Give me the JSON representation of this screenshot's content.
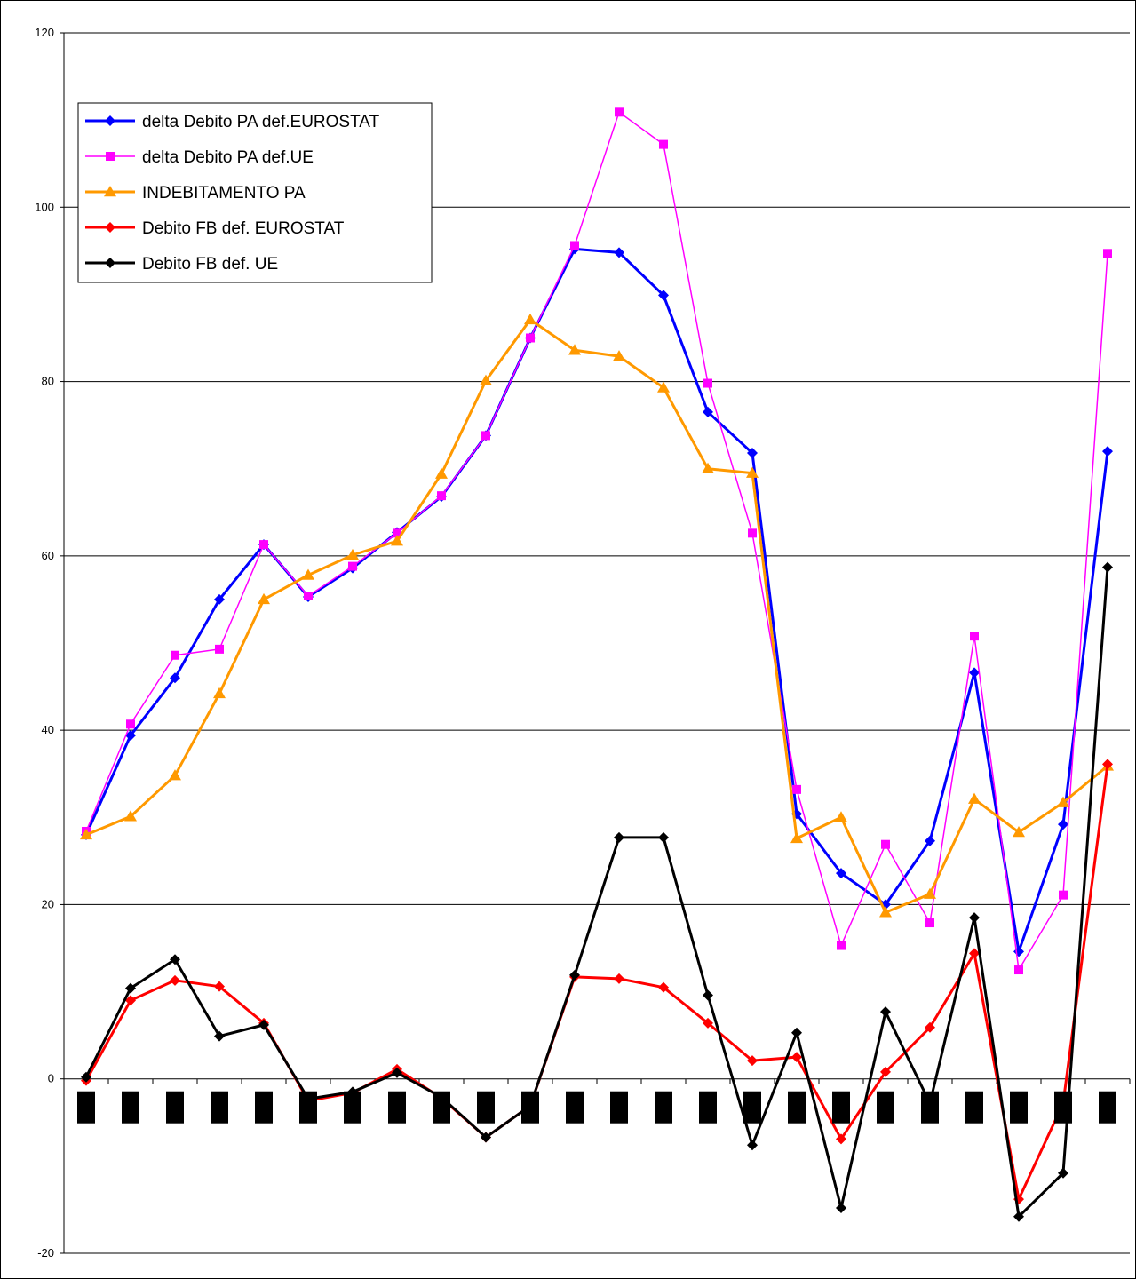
{
  "chart_data": {
    "type": "line",
    "ylim": [
      -20,
      120
    ],
    "yticks": [
      -20,
      0,
      20,
      40,
      60,
      80,
      100,
      120
    ],
    "grid": "horizontal",
    "legend_position": "top-left",
    "x_count": 24,
    "category_labels_obscured": true,
    "series": [
      {
        "name": "delta Debito PA def.EUROSTAT",
        "color": "#0000ff",
        "marker": "diamond",
        "values": [
          28.0,
          39.4,
          46.0,
          55.0,
          61.3,
          55.3,
          58.6,
          62.7,
          66.8,
          73.8,
          85.0,
          95.2,
          94.8,
          89.9,
          76.5,
          71.8,
          30.4,
          23.6,
          20.0,
          27.3,
          46.6,
          14.6,
          29.2,
          72.0
        ]
      },
      {
        "name": "delta Debito PA def.UE",
        "color": "#ff00ff",
        "marker": "square",
        "values": [
          28.4,
          40.7,
          48.6,
          49.3,
          61.3,
          55.4,
          58.8,
          62.6,
          66.9,
          73.8,
          85.0,
          95.6,
          110.9,
          107.2,
          79.8,
          62.6,
          33.2,
          15.3,
          26.9,
          17.9,
          50.8,
          12.5,
          21.1,
          94.7
        ]
      },
      {
        "name": "INDEBITAMENTO PA",
        "color": "#ff9900",
        "marker": "triangle",
        "values": [
          28.0,
          30.1,
          34.8,
          44.2,
          55.0,
          57.8,
          60.1,
          61.7,
          69.4,
          80.1,
          87.1,
          83.6,
          82.9,
          79.3,
          70.0,
          69.5,
          27.6,
          30.0,
          19.1,
          21.2,
          32.1,
          28.3,
          31.7,
          35.9
        ]
      },
      {
        "name": "Debito FB def. EUROSTAT",
        "color": "#ff0000",
        "marker": "diamond",
        "values": [
          -0.2,
          9.0,
          11.3,
          10.6,
          6.4,
          -2.5,
          -1.6,
          1.1,
          -2.2,
          -6.7,
          -3.1,
          11.7,
          11.5,
          10.5,
          6.4,
          2.1,
          2.5,
          -6.9,
          0.8,
          5.9,
          14.4,
          -13.8,
          -2.8,
          36.1
        ]
      },
      {
        "name": "Debito FB def. UE",
        "color": "#000000",
        "marker": "diamond",
        "values": [
          0.2,
          10.4,
          13.7,
          4.9,
          6.2,
          -2.3,
          -1.5,
          0.7,
          -2.1,
          -6.7,
          -3.1,
          11.9,
          27.7,
          27.7,
          9.6,
          -7.6,
          5.3,
          -14.8,
          7.7,
          -2.8,
          18.5,
          -15.8,
          -10.8,
          58.7
        ]
      }
    ]
  }
}
